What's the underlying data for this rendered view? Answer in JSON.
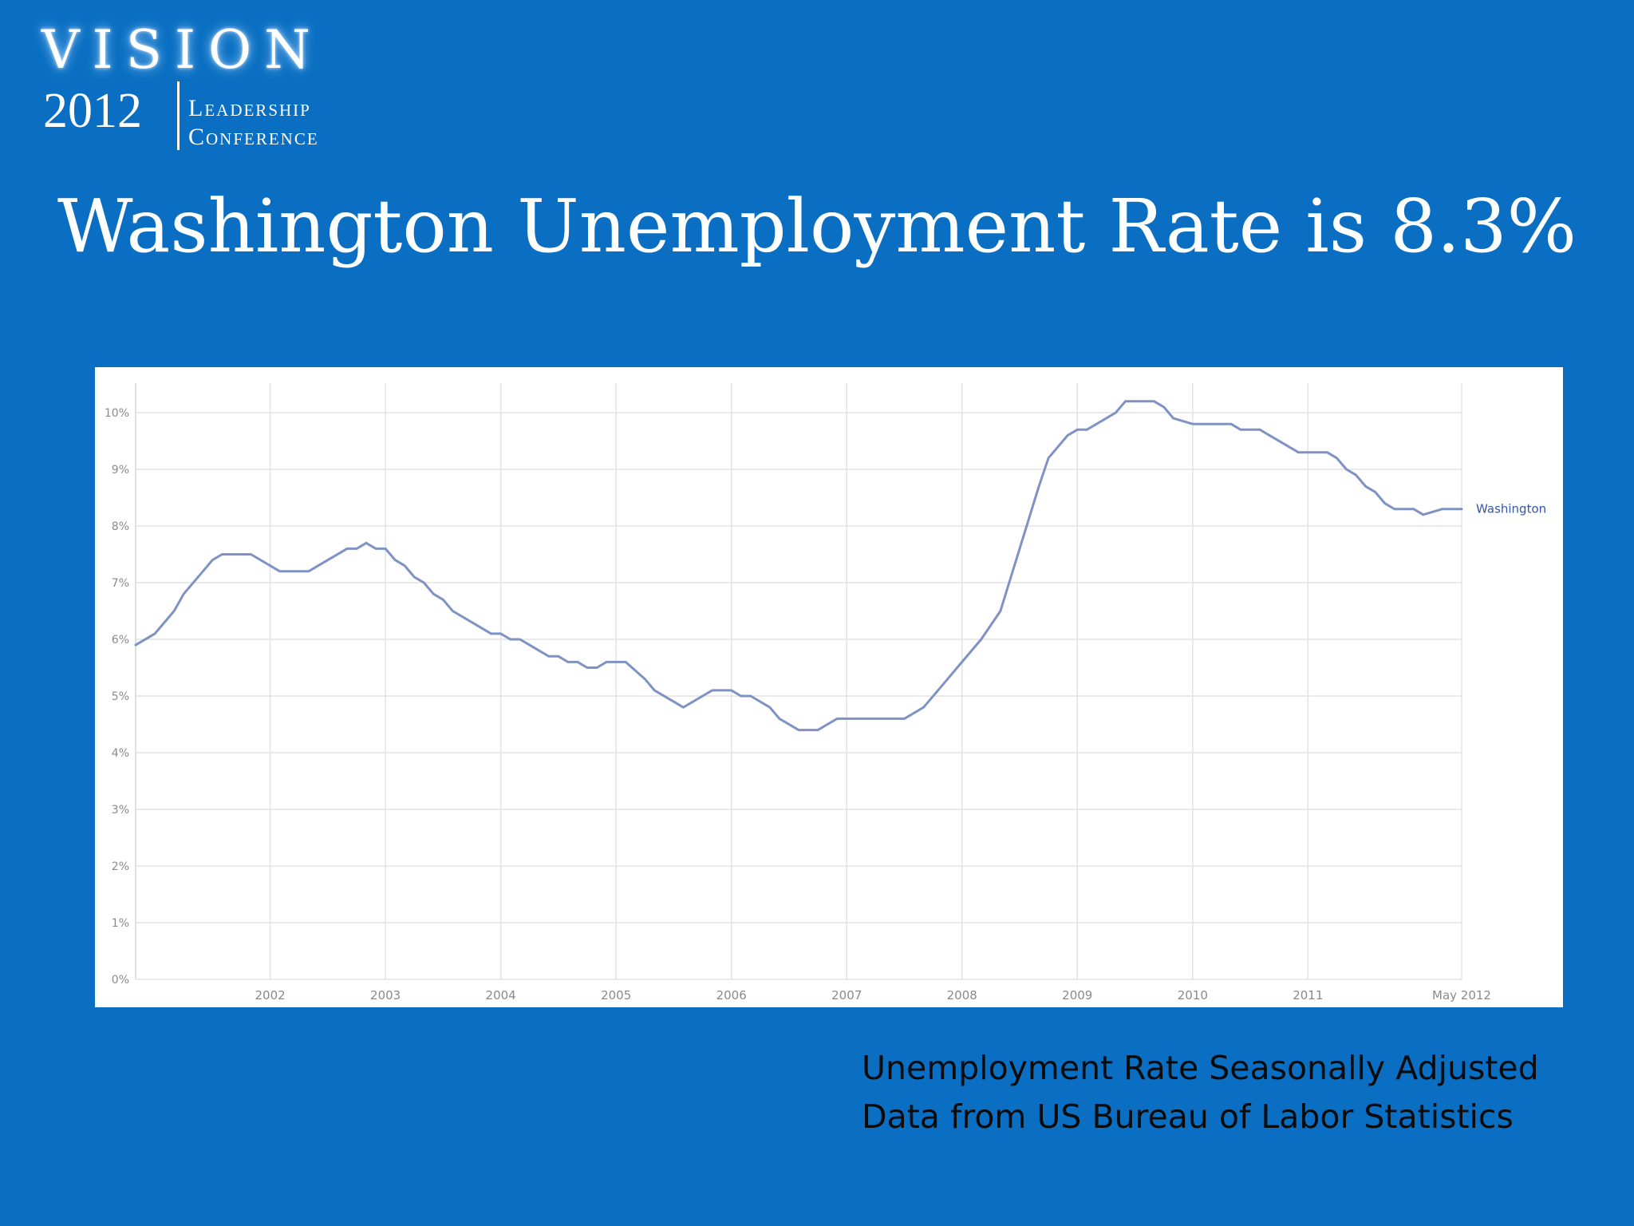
{
  "logo": {
    "vision": "VISION",
    "year": "2012",
    "line1": "Leadership",
    "line2": "Conference"
  },
  "title": "Washington Unemployment Rate is 8.3%",
  "colors": {
    "background": "#0a6fc2",
    "panel": "#ffffff",
    "series": "#7f92c3",
    "label": "#3856a8",
    "grid": "#e3e3e3"
  },
  "chart_data": {
    "type": "line",
    "title": "",
    "xlabel": "",
    "ylabel": "",
    "ylim": [
      0,
      10.5
    ],
    "xlim": [
      "2000-11",
      "2012-05"
    ],
    "y_ticks": [
      "0%",
      "1%",
      "2%",
      "3%",
      "4%",
      "5%",
      "6%",
      "7%",
      "8%",
      "9%",
      "10%"
    ],
    "x_ticks": [
      {
        "date": "2002-01",
        "label": "2002"
      },
      {
        "date": "2003-01",
        "label": "2003"
      },
      {
        "date": "2004-01",
        "label": "2004"
      },
      {
        "date": "2005-01",
        "label": "2005"
      },
      {
        "date": "2006-01",
        "label": "2006"
      },
      {
        "date": "2007-01",
        "label": "2007"
      },
      {
        "date": "2008-01",
        "label": "2008"
      },
      {
        "date": "2009-01",
        "label": "2009"
      },
      {
        "date": "2010-01",
        "label": "2010"
      },
      {
        "date": "2011-01",
        "label": "2011"
      },
      {
        "date": "2012-05",
        "label": "May 2012"
      }
    ],
    "grid": true,
    "series": [
      {
        "name": "Washington",
        "points": [
          [
            "2000-11",
            5.9
          ],
          [
            "2001-01",
            6.1
          ],
          [
            "2001-03",
            6.5
          ],
          [
            "2001-04",
            6.8
          ],
          [
            "2001-06",
            7.2
          ],
          [
            "2001-07",
            7.4
          ],
          [
            "2001-08",
            7.5
          ],
          [
            "2001-10",
            7.5
          ],
          [
            "2001-11",
            7.5
          ],
          [
            "2002-01",
            7.3
          ],
          [
            "2002-02",
            7.2
          ],
          [
            "2002-05",
            7.2
          ],
          [
            "2002-07",
            7.4
          ],
          [
            "2002-09",
            7.6
          ],
          [
            "2002-10",
            7.6
          ],
          [
            "2002-11",
            7.7
          ],
          [
            "2002-12",
            7.6
          ],
          [
            "2003-01",
            7.6
          ],
          [
            "2003-02",
            7.4
          ],
          [
            "2003-03",
            7.3
          ],
          [
            "2003-04",
            7.1
          ],
          [
            "2003-05",
            7.0
          ],
          [
            "2003-06",
            6.8
          ],
          [
            "2003-07",
            6.7
          ],
          [
            "2003-08",
            6.5
          ],
          [
            "2003-10",
            6.3
          ],
          [
            "2003-12",
            6.1
          ],
          [
            "2004-01",
            6.1
          ],
          [
            "2004-02",
            6.0
          ],
          [
            "2004-03",
            6.0
          ],
          [
            "2004-05",
            5.8
          ],
          [
            "2004-06",
            5.7
          ],
          [
            "2004-07",
            5.7
          ],
          [
            "2004-08",
            5.6
          ],
          [
            "2004-09",
            5.6
          ],
          [
            "2004-10",
            5.5
          ],
          [
            "2004-11",
            5.5
          ],
          [
            "2004-12",
            5.6
          ],
          [
            "2005-01",
            5.6
          ],
          [
            "2005-02",
            5.6
          ],
          [
            "2005-04",
            5.3
          ],
          [
            "2005-05",
            5.1
          ],
          [
            "2005-07",
            4.9
          ],
          [
            "2005-08",
            4.8
          ],
          [
            "2005-10",
            5.0
          ],
          [
            "2005-11",
            5.1
          ],
          [
            "2006-01",
            5.1
          ],
          [
            "2006-02",
            5.0
          ],
          [
            "2006-03",
            5.0
          ],
          [
            "2006-05",
            4.8
          ],
          [
            "2006-06",
            4.6
          ],
          [
            "2006-08",
            4.4
          ],
          [
            "2006-10",
            4.4
          ],
          [
            "2006-11",
            4.5
          ],
          [
            "2006-12",
            4.6
          ],
          [
            "2007-02",
            4.6
          ],
          [
            "2007-06",
            4.6
          ],
          [
            "2007-07",
            4.6
          ],
          [
            "2007-09",
            4.8
          ],
          [
            "2007-11",
            5.2
          ],
          [
            "2008-01",
            5.6
          ],
          [
            "2008-03",
            6.0
          ],
          [
            "2008-05",
            6.5
          ],
          [
            "2008-07",
            7.6
          ],
          [
            "2008-09",
            8.7
          ],
          [
            "2008-10",
            9.2
          ],
          [
            "2008-12",
            9.6
          ],
          [
            "2009-01",
            9.7
          ],
          [
            "2009-02",
            9.7
          ],
          [
            "2009-05",
            10.0
          ],
          [
            "2009-06",
            10.2
          ],
          [
            "2009-09",
            10.2
          ],
          [
            "2009-10",
            10.1
          ],
          [
            "2009-11",
            9.9
          ],
          [
            "2010-01",
            9.8
          ],
          [
            "2010-05",
            9.8
          ],
          [
            "2010-06",
            9.7
          ],
          [
            "2010-08",
            9.7
          ],
          [
            "2010-09",
            9.6
          ],
          [
            "2010-11",
            9.4
          ],
          [
            "2010-12",
            9.3
          ],
          [
            "2011-03",
            9.3
          ],
          [
            "2011-04",
            9.2
          ],
          [
            "2011-05",
            9.0
          ],
          [
            "2011-06",
            8.9
          ],
          [
            "2011-07",
            8.7
          ],
          [
            "2011-08",
            8.6
          ],
          [
            "2011-09",
            8.4
          ],
          [
            "2011-10",
            8.3
          ],
          [
            "2011-12",
            8.3
          ],
          [
            "2012-01",
            8.2
          ],
          [
            "2012-03",
            8.3
          ],
          [
            "2012-05",
            8.3
          ]
        ]
      }
    ]
  },
  "footnote": {
    "line1": "Unemployment Rate Seasonally Adjusted",
    "line2": "Data from US Bureau of Labor Statistics"
  }
}
